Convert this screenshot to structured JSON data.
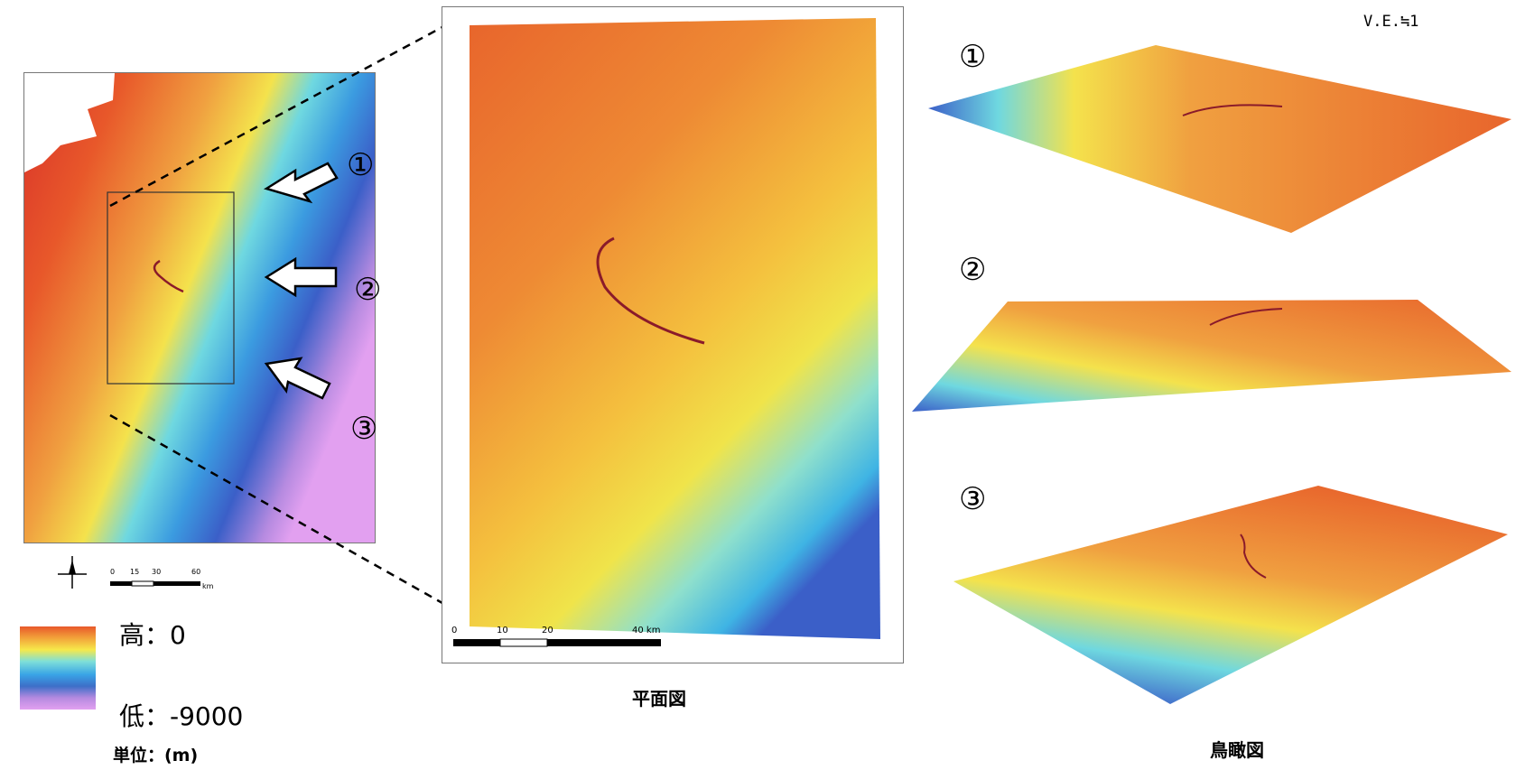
{
  "vertical_exaggeration": "V.E.≒1",
  "overview_map": {
    "markers": [
      "①",
      "②",
      "③"
    ],
    "scale_bar": {
      "ticks": [
        "0",
        "15",
        "30",
        "60"
      ],
      "unit": "km"
    }
  },
  "legend": {
    "high_label": "高：0",
    "low_label": "低：-9000",
    "unit_label": "単位：(m)"
  },
  "plan_view": {
    "caption": "平面図",
    "scale_bar": {
      "ticks": [
        "0",
        "10",
        "20",
        "40 km"
      ]
    }
  },
  "birdseye_views": {
    "caption": "鳥瞰図",
    "views": [
      {
        "label": "①"
      },
      {
        "label": "②"
      },
      {
        "label": "③"
      }
    ]
  },
  "colors": {
    "high": "#e8582a",
    "mid_orange": "#f0a040",
    "mid_yellow": "#f4e24c",
    "mid_cyan": "#6fd8e0",
    "low_blue": "#3b6cc8",
    "lowest_violet": "#d9a0ee",
    "fault_line": "#8a1a2a"
  }
}
